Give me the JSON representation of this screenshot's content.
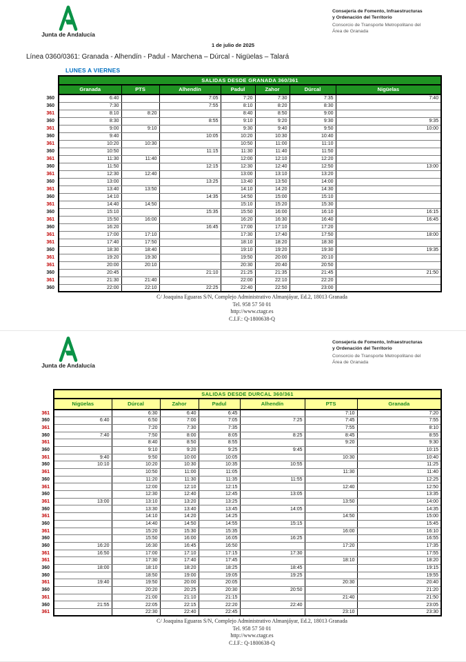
{
  "org": {
    "brand": "Junta de Andalucía",
    "dept_line1": "Consejería de Fomento, Infraestructuras",
    "dept_line2": "y Ordenación del Territorio",
    "consorcio_line1": "Consorcio de Transporte Metropolitano del",
    "consorcio_line2": "Área de Granada"
  },
  "date": "1 de julio de 2025",
  "line_title": "Línea 0360/0361: Granada - Alhendín - Padul - Marchena – Dúrcal - Nigüelas – Talará",
  "service_days": "LUNES A VIERNES",
  "footer": {
    "address": "C/ Joaquina Eguaras S/N, Complejo Administrativo Almanjáyar, Ed.2, 18013 Granada",
    "phone": "Tel. 958 57 50 01",
    "web": "http://www.ctagr.es",
    "cif": "C.I.F.: Q-1800638-Q"
  },
  "colors": {
    "granada_header_bg": "#1f9322",
    "granada_header_text": "#ffffff",
    "durcal_header_bg": "#ffff99",
    "durcal_header_text": "#1e8a22",
    "line_361": "#c00000",
    "line_360": "#000000",
    "weekday_label": "#0070c0",
    "logo_green": "#0a9246"
  },
  "granada_table": {
    "title": "SALIDAS DESDE GRANADA 360/361",
    "columns": [
      "Granada",
      "PTS",
      "Alhendín",
      "Padul",
      "Zahor",
      "Dúrcal",
      "Nigüelas"
    ],
    "rows": [
      {
        "line": "360",
        "times": [
          "6:40",
          "",
          "7:05",
          "7:20",
          "7:30",
          "7:35",
          "7:40"
        ]
      },
      {
        "line": "360",
        "times": [
          "7:30",
          "",
          "7:55",
          "8:10",
          "8:20",
          "8:30",
          ""
        ]
      },
      {
        "line": "361",
        "times": [
          "8:10",
          "8:20",
          "",
          "8:40",
          "8:50",
          "9:00",
          ""
        ]
      },
      {
        "line": "360",
        "times": [
          "8:30",
          "",
          "8:55",
          "9:10",
          "9:20",
          "9:30",
          "9:35"
        ]
      },
      {
        "line": "361",
        "times": [
          "9:00",
          "9:10",
          "",
          "9:30",
          "9:40",
          "9:50",
          "10:00"
        ]
      },
      {
        "line": "360",
        "times": [
          "9:40",
          "",
          "10:05",
          "10:20",
          "10:30",
          "10:40",
          ""
        ]
      },
      {
        "line": "361",
        "times": [
          "10:20",
          "10:30",
          "",
          "10:50",
          "11:00",
          "11:10",
          ""
        ]
      },
      {
        "line": "360",
        "times": [
          "10:50",
          "",
          "11:15",
          "11:30",
          "11:40",
          "11:50",
          ""
        ]
      },
      {
        "line": "361",
        "times": [
          "11:30",
          "11:40",
          "",
          "12:00",
          "12:10",
          "12:20",
          ""
        ]
      },
      {
        "line": "360",
        "times": [
          "11:50",
          "",
          "12:15",
          "12:30",
          "12:40",
          "12:50",
          "13:00"
        ]
      },
      {
        "line": "361",
        "times": [
          "12:30",
          "12:40",
          "",
          "13:00",
          "13:10",
          "13:20",
          ""
        ]
      },
      {
        "line": "360",
        "times": [
          "13:00",
          "",
          "13:25",
          "13:40",
          "13:50",
          "14:00",
          ""
        ]
      },
      {
        "line": "361",
        "times": [
          "13:40",
          "13:50",
          "",
          "14:10",
          "14:20",
          "14:30",
          ""
        ]
      },
      {
        "line": "360",
        "times": [
          "14:10",
          "",
          "14:35",
          "14:50",
          "15:00",
          "15:10",
          ""
        ]
      },
      {
        "line": "361",
        "times": [
          "14:40",
          "14:50",
          "",
          "15:10",
          "15:20",
          "15:30",
          ""
        ]
      },
      {
        "line": "360",
        "times": [
          "15:10",
          "",
          "15:35",
          "15:50",
          "16:00",
          "16:10",
          "16:15"
        ]
      },
      {
        "line": "361",
        "times": [
          "15:50",
          "16:00",
          "",
          "16:20",
          "16:30",
          "16:40",
          "16:45"
        ]
      },
      {
        "line": "360",
        "times": [
          "16:20",
          "",
          "16:45",
          "17:00",
          "17:10",
          "17:20",
          ""
        ]
      },
      {
        "line": "361",
        "times": [
          "17:00",
          "17:10",
          "",
          "17:30",
          "17:40",
          "17:50",
          "18:00"
        ]
      },
      {
        "line": "361",
        "times": [
          "17:40",
          "17:50",
          "",
          "18:10",
          "18:20",
          "18:30",
          ""
        ]
      },
      {
        "line": "360",
        "times": [
          "18:30",
          "18:40",
          "",
          "19:10",
          "19:20",
          "19:30",
          "19:35"
        ]
      },
      {
        "line": "361",
        "times": [
          "19:20",
          "19:30",
          "",
          "19:50",
          "20:00",
          "20:10",
          ""
        ]
      },
      {
        "line": "361",
        "times": [
          "20:00",
          "20:10",
          "",
          "20:30",
          "20:40",
          "20:50",
          ""
        ]
      },
      {
        "line": "360",
        "times": [
          "20:45",
          "",
          "21:10",
          "21:25",
          "21:35",
          "21:45",
          "21:50"
        ]
      },
      {
        "line": "361",
        "times": [
          "21:30",
          "21:40",
          "",
          "22:00",
          "22:10",
          "22:20",
          ""
        ]
      },
      {
        "line": "360",
        "times": [
          "22:00",
          "22:10",
          "22:25",
          "22:40",
          "22:50",
          "23:00",
          ""
        ]
      }
    ]
  },
  "durcal_table": {
    "title": "SALIDAS DESDE DURCAL 360/361",
    "columns": [
      "Nigüelas",
      "Dúrcal",
      "Zahor",
      "Padul",
      "Alhendín",
      "PTS",
      "Granada"
    ],
    "rows": [
      {
        "line": "361",
        "times": [
          "",
          "6:30",
          "6:40",
          "6:45",
          "",
          "7:10",
          "7:20"
        ]
      },
      {
        "line": "360",
        "times": [
          "6:40",
          "6:50",
          "7:00",
          "7:05",
          "7:25",
          "7:45",
          "7:55"
        ]
      },
      {
        "line": "361",
        "times": [
          "",
          "7:20",
          "7:30",
          "7:35",
          "",
          "7:55",
          "8:10"
        ]
      },
      {
        "line": "360",
        "times": [
          "7:40",
          "7:50",
          "8:00",
          "8:05",
          "8:25",
          "8:45",
          "8:55"
        ]
      },
      {
        "line": "361",
        "times": [
          "",
          "8:40",
          "8:50",
          "8:55",
          "",
          "9:20",
          "9:30"
        ]
      },
      {
        "line": "360",
        "times": [
          "",
          "9:10",
          "9:20",
          "9:25",
          "9:45",
          "",
          "10:15"
        ]
      },
      {
        "line": "361",
        "times": [
          "9:40",
          "9:50",
          "10:00",
          "10:05",
          "",
          "10:30",
          "10:40"
        ]
      },
      {
        "line": "360",
        "times": [
          "10:10",
          "10:20",
          "10:30",
          "10:35",
          "10:55",
          "",
          "11:25"
        ]
      },
      {
        "line": "361",
        "times": [
          "",
          "10:50",
          "11:00",
          "11:05",
          "",
          "11:30",
          "11:40"
        ]
      },
      {
        "line": "360",
        "times": [
          "",
          "11:20",
          "11:30",
          "11:35",
          "11:55",
          "",
          "12:25"
        ]
      },
      {
        "line": "361",
        "times": [
          "",
          "12:00",
          "12:10",
          "12:15",
          "",
          "12:40",
          "12:50"
        ]
      },
      {
        "line": "360",
        "times": [
          "",
          "12:30",
          "12:40",
          "12:45",
          "13:05",
          "",
          "13:35"
        ]
      },
      {
        "line": "361",
        "times": [
          "13:00",
          "13:10",
          "13:20",
          "13:25",
          "",
          "13:50",
          "14:00"
        ]
      },
      {
        "line": "360",
        "times": [
          "",
          "13:30",
          "13:40",
          "13:45",
          "14:05",
          "",
          "14:35"
        ]
      },
      {
        "line": "361",
        "times": [
          "",
          "14:10",
          "14:20",
          "14:25",
          "",
          "14:50",
          "15:00"
        ]
      },
      {
        "line": "360",
        "times": [
          "",
          "14:40",
          "14:50",
          "14:55",
          "15:15",
          "",
          "15:45"
        ]
      },
      {
        "line": "361",
        "times": [
          "",
          "15:20",
          "15:30",
          "15:35",
          "",
          "16:00",
          "16:10"
        ]
      },
      {
        "line": "360",
        "times": [
          "",
          "15:50",
          "16:00",
          "16:05",
          "16:25",
          "",
          "16:55"
        ]
      },
      {
        "line": "360",
        "times": [
          "16:20",
          "16:30",
          "16:45",
          "16:50",
          "",
          "17:20",
          "17:35"
        ]
      },
      {
        "line": "361",
        "times": [
          "16:50",
          "17:00",
          "17:10",
          "17:15",
          "17:30",
          "",
          "17:55"
        ]
      },
      {
        "line": "361",
        "times": [
          "",
          "17:30",
          "17:40",
          "17:45",
          "",
          "18:10",
          "18:20"
        ]
      },
      {
        "line": "360",
        "times": [
          "18:00",
          "18:10",
          "18:20",
          "18:25",
          "18:45",
          "",
          "19:15"
        ]
      },
      {
        "line": "360",
        "times": [
          "",
          "18:50",
          "19:00",
          "19:05",
          "19:25",
          "",
          "19:55"
        ]
      },
      {
        "line": "361",
        "times": [
          "19:40",
          "19:50",
          "20:00",
          "20:05",
          "",
          "20:30",
          "20:40"
        ]
      },
      {
        "line": "360",
        "times": [
          "",
          "20:20",
          "20:25",
          "20:30",
          "20:50",
          "",
          "21:20"
        ]
      },
      {
        "line": "361",
        "times": [
          "",
          "21:00",
          "21:10",
          "21:15",
          "",
          "21:40",
          "21:50"
        ]
      },
      {
        "line": "360",
        "times": [
          "21:55",
          "22:05",
          "22:15",
          "22:20",
          "22:40",
          "",
          "23:05"
        ]
      },
      {
        "line": "361",
        "times": [
          "",
          "22:30",
          "22:40",
          "22:45",
          "",
          "23:10",
          "23:30"
        ]
      }
    ]
  }
}
